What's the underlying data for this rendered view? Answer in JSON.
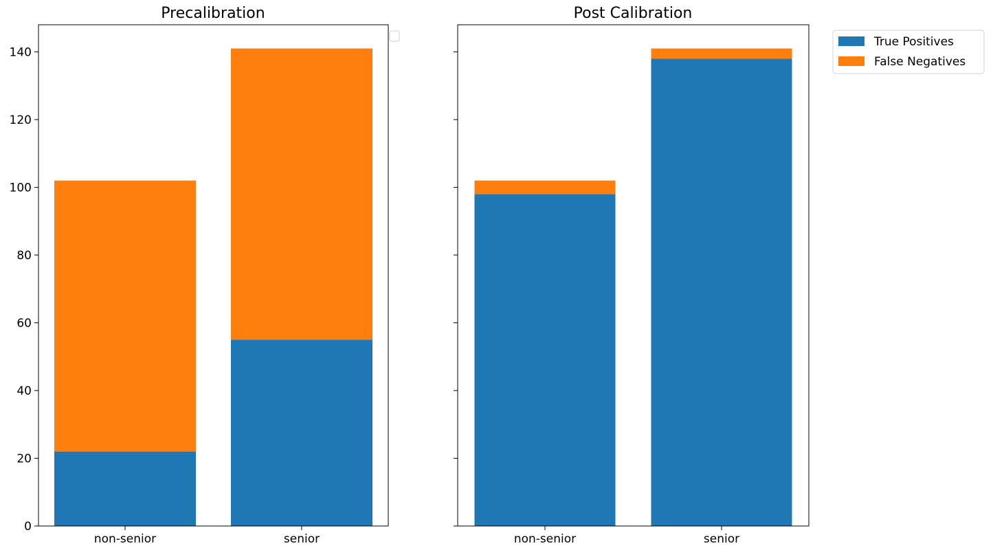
{
  "colors": {
    "true_positives": "#1f77b4",
    "false_negatives": "#ff7f0e"
  },
  "legend": {
    "items": [
      {
        "label": "True Positives",
        "color": "#1f77b4"
      },
      {
        "label": "False Negatives",
        "color": "#ff7f0e"
      }
    ],
    "placement": "outside upper-right"
  },
  "chart_data": [
    {
      "type": "bar",
      "stacked": true,
      "title": "Precalibration",
      "categories": [
        "non-senior",
        "senior"
      ],
      "series": [
        {
          "name": "True Positives",
          "values": [
            22,
            55
          ]
        },
        {
          "name": "False Negatives",
          "values": [
            80,
            86
          ]
        }
      ],
      "ylim": [
        0,
        148
      ],
      "yticks": [
        0,
        20,
        40,
        60,
        80,
        100,
        120,
        140
      ],
      "grid": false
    },
    {
      "type": "bar",
      "stacked": true,
      "title": "Post Calibration",
      "categories": [
        "non-senior",
        "senior"
      ],
      "series": [
        {
          "name": "True Positives",
          "values": [
            98,
            138
          ]
        },
        {
          "name": "False Negatives",
          "values": [
            4,
            3
          ]
        }
      ],
      "ylim": [
        0,
        148
      ],
      "yticks": [
        0,
        20,
        40,
        60,
        80,
        100,
        120,
        140
      ],
      "grid": false
    }
  ]
}
